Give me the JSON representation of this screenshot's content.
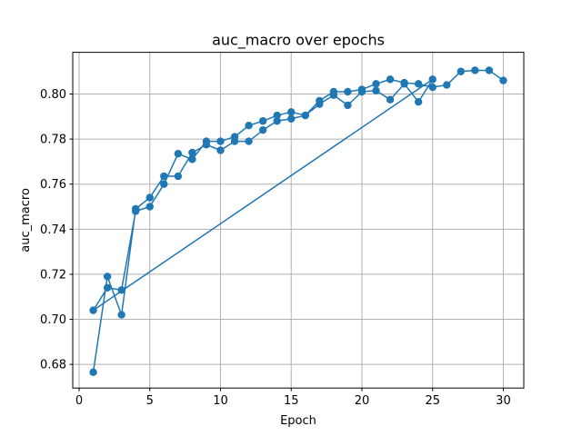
{
  "chart_data": {
    "type": "line",
    "title": "auc_macro over epochs",
    "xlabel": "Epoch",
    "ylabel": "auc_macro",
    "xlim": [
      -0.45,
      31.45
    ],
    "ylim": [
      0.6695,
      0.8185
    ],
    "xticks": [
      0,
      5,
      10,
      15,
      20,
      25,
      30
    ],
    "yticks": [
      0.68,
      0.7,
      0.72,
      0.74,
      0.76,
      0.78,
      0.8
    ],
    "xtick_labels": [
      "0",
      "5",
      "10",
      "15",
      "20",
      "25",
      "30"
    ],
    "ytick_labels": [
      "0.68",
      "0.70",
      "0.72",
      "0.74",
      "0.76",
      "0.78",
      "0.80"
    ],
    "grid": true,
    "color": "#1f77b4",
    "series": [
      {
        "x": [
          1,
          2,
          3,
          4,
          5,
          6,
          7,
          8,
          9,
          10,
          11,
          12,
          13,
          14,
          15,
          16,
          17,
          18,
          19,
          20,
          21,
          22,
          23,
          24,
          25,
          1,
          2,
          3,
          4,
          5,
          6,
          7,
          8,
          9,
          10,
          11,
          12,
          13,
          14,
          15,
          16,
          17,
          18,
          19,
          20,
          21,
          22,
          23,
          24,
          25,
          26,
          27,
          28,
          29,
          30
        ],
        "y": [
          0.6765,
          0.719,
          0.702,
          0.749,
          0.754,
          0.7635,
          0.7635,
          0.774,
          0.7775,
          0.775,
          0.779,
          0.779,
          0.784,
          0.788,
          0.789,
          0.7905,
          0.7955,
          0.7995,
          0.795,
          0.801,
          0.8015,
          0.7975,
          0.8045,
          0.7965,
          0.8065,
          0.704,
          0.714,
          0.713,
          0.748,
          0.75,
          0.76,
          0.7735,
          0.771,
          0.779,
          0.779,
          0.781,
          0.786,
          0.788,
          0.7905,
          0.792,
          0.7905,
          0.797,
          0.801,
          0.801,
          0.802,
          0.8045,
          0.8065,
          0.805,
          0.8045,
          0.803,
          0.804,
          0.81,
          0.8105,
          0.8105,
          0.806
        ]
      }
    ]
  }
}
